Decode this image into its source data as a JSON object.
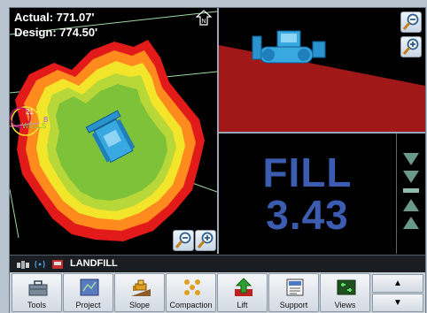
{
  "readout": {
    "actual": "Actual: 771.07'",
    "design": "Design: 774.50'"
  },
  "map": {
    "point_number": "21",
    "point_name": "WELLS",
    "point_suffix": "B"
  },
  "fill": {
    "word": "FILL",
    "value": "3.43"
  },
  "status": {
    "label": "LANDFILL"
  },
  "toolbar": {
    "buttons": [
      {
        "label": "Tools",
        "icon": "toolbox-icon"
      },
      {
        "label": "Project",
        "icon": "project-icon"
      },
      {
        "label": "Slope",
        "icon": "dozer-slope-icon"
      },
      {
        "label": "Compaction",
        "icon": "compaction-icon"
      },
      {
        "label": "Lift",
        "icon": "lift-arrow-icon"
      },
      {
        "label": "Support",
        "icon": "support-icon"
      },
      {
        "label": "Views",
        "icon": "views-icon"
      }
    ],
    "scroll_up": "▲",
    "scroll_down": "▼"
  },
  "colors": {
    "cut_fill_red": "#e21a1a",
    "on_grade_green": "#7ec23a",
    "fill_text": "#3b5cb0",
    "profile_ground": "#a01818"
  }
}
